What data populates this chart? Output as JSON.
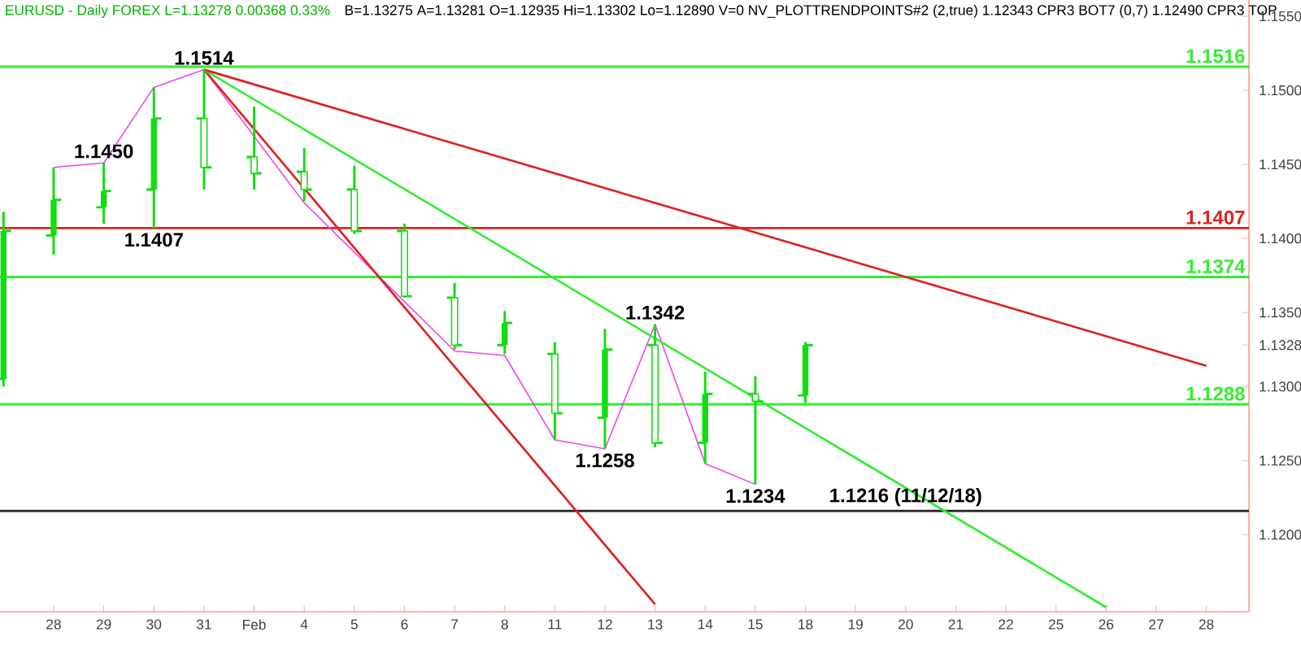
{
  "chart_data": {
    "type": "candlestick",
    "title": "EURUSD - Daily  FOREX  L=1.13278  0.00368  0.33%",
    "subtitle": "B=1.13275  A=1.13281  O=1.12935  Hi=1.13302  Lo=1.12890  V=0  NV_PLOTTRENDPOINTS#2 (2,true)  1.12343  CPR3 BOT7 (0,7)  1.12490  CPR3 TOP",
    "categories": [
      null,
      "28",
      "29",
      "30",
      "31",
      "Feb",
      "4",
      "5",
      "6",
      "7",
      "8",
      "11",
      "12",
      "13",
      "14",
      "15",
      "18",
      "19",
      "20",
      "21",
      "22",
      "25",
      "26",
      "27",
      "28"
    ],
    "ohlc": [
      [
        1.1305,
        1.1418,
        1.13,
        1.1405
      ],
      [
        1.1402,
        1.1448,
        1.1389,
        1.1426
      ],
      [
        1.1421,
        1.1451,
        1.141,
        1.1432
      ],
      [
        1.1433,
        1.1502,
        1.1407,
        1.1481
      ],
      [
        1.1481,
        1.1514,
        1.1433,
        1.1448
      ],
      [
        1.1455,
        1.1489,
        1.1433,
        1.1444
      ],
      [
        1.1445,
        1.1461,
        1.1425,
        1.1433
      ],
      [
        1.1433,
        1.1449,
        1.1403,
        1.1405
      ],
      [
        1.1405,
        1.141,
        1.136,
        1.1361
      ],
      [
        1.136,
        1.137,
        1.1325,
        1.1328
      ],
      [
        1.1328,
        1.1351,
        1.1322,
        1.1343
      ],
      [
        1.1322,
        1.133,
        1.1264,
        1.1282
      ],
      [
        1.1279,
        1.1339,
        1.1258,
        1.1325
      ],
      [
        1.1328,
        1.1342,
        1.1259,
        1.1262
      ],
      [
        1.1262,
        1.131,
        1.1248,
        1.1295
      ],
      [
        1.1295,
        1.1307,
        1.1234,
        1.129
      ],
      [
        1.1294,
        1.133,
        1.1289,
        1.1328
      ],
      null,
      null,
      null,
      null,
      null,
      null,
      null,
      null
    ],
    "color": "#11dd11",
    "series": [
      {
        "type": "line",
        "color": "#ee44ee",
        "values": [
          null,
          1.1448,
          1.1451,
          1.1502,
          1.1514,
          null,
          1.1424,
          null,
          null,
          1.1324,
          1.1321,
          1.1264,
          1.1258,
          1.1342,
          1.1248,
          1.1234,
          null,
          null,
          null,
          null,
          null,
          null,
          null,
          null,
          null
        ]
      },
      {
        "type": "line",
        "color": "#dd2222",
        "values": [
          null,
          null,
          null,
          null,
          1.1514,
          null,
          null,
          null,
          null,
          null,
          null,
          null,
          null,
          1.1153,
          null,
          null,
          null,
          null,
          null,
          null,
          null,
          null,
          null,
          null,
          null
        ]
      },
      {
        "type": "line",
        "color": "#33ee33",
        "values": [
          null,
          null,
          null,
          null,
          1.1514,
          null,
          null,
          null,
          null,
          null,
          null,
          null,
          null,
          null,
          null,
          null,
          null,
          null,
          null,
          null,
          null,
          null,
          1.1151,
          null,
          null
        ]
      },
      {
        "type": "line",
        "color": "#dd2222",
        "values": [
          null,
          null,
          null,
          null,
          1.1514,
          null,
          null,
          null,
          null,
          null,
          null,
          null,
          null,
          null,
          null,
          null,
          null,
          null,
          null,
          null,
          null,
          null,
          null,
          null,
          1.1314
        ]
      }
    ],
    "ylim": [
      1.1148,
      1.1561
    ],
    "yticks": [
      {
        "value": 1.12,
        "label": "1.1200"
      },
      {
        "value": 1.125,
        "label": "1.1250"
      },
      {
        "value": 1.13,
        "label": "1.1300"
      },
      {
        "value": 1.1328,
        "label": "1.1328"
      },
      {
        "value": 1.135,
        "label": "1.1350"
      },
      {
        "value": 1.14,
        "label": "1.1400"
      },
      {
        "value": 1.145,
        "label": "1.1450"
      },
      {
        "value": 1.15,
        "label": "1.1500"
      },
      {
        "value": 1.155,
        "label": "1.1550"
      }
    ],
    "ref_lines": [
      {
        "axis": "y",
        "value": 1.1516,
        "label": "1.1516",
        "color": "#33ee33"
      },
      {
        "axis": "y",
        "value": 1.1407,
        "label": "1.1407",
        "color": "#dd2222"
      },
      {
        "axis": "y",
        "value": 1.1374,
        "label": "1.1374",
        "color": "#33ee33"
      },
      {
        "axis": "y",
        "value": 1.1288,
        "label": "1.1288",
        "color": "#33ee33"
      },
      {
        "axis": "y",
        "value": 1.1216,
        "color": "#222222"
      }
    ],
    "annotations": [
      {
        "text": "1.1514",
        "x": "31",
        "y": 1.1514
      },
      {
        "text": "1.1450",
        "x": "29",
        "y": 1.1451
      },
      {
        "text": "1.1407",
        "x": "30",
        "y": 1.1407
      },
      {
        "text": "1.1342",
        "x": "13",
        "y": 1.1342
      },
      {
        "text": "1.1258",
        "x": "12",
        "y": 1.1258
      },
      {
        "text": "1.1234",
        "x": "15",
        "y": 1.1234
      },
      {
        "text": "1.1216 (11/12/18)",
        "x": "20",
        "y": 1.1216
      }
    ],
    "grid": false,
    "legend": false,
    "marker": "none",
    "line_style": "solid"
  }
}
